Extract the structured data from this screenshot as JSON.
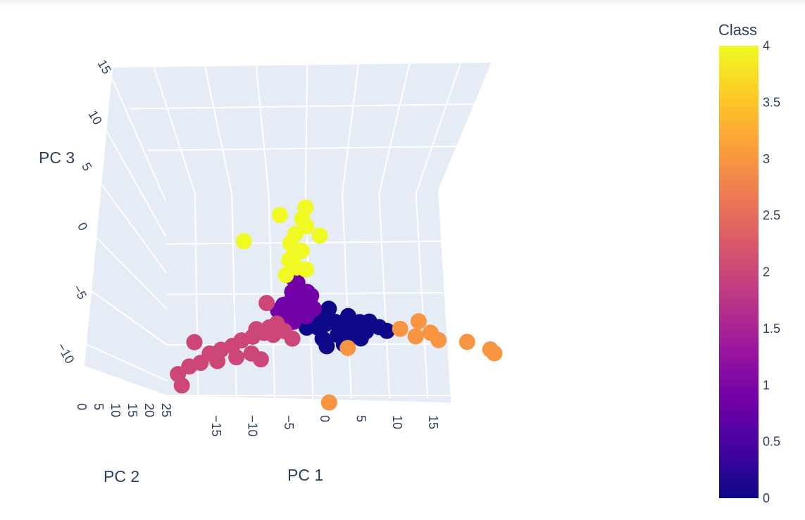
{
  "chart_data": {
    "type": "scatter3d",
    "axes": {
      "x": {
        "label": "PC 1",
        "ticks": [
          "−15",
          "−10",
          "−5",
          "0",
          "5",
          "10",
          "15"
        ]
      },
      "y": {
        "label": "PC 2",
        "ticks": [
          "0",
          "5",
          "10",
          "15",
          "20",
          "25"
        ]
      },
      "z": {
        "label": "PC 3",
        "ticks": [
          "−10",
          "−5",
          "0",
          "5",
          "10",
          "15"
        ]
      }
    },
    "colorbar": {
      "title": "Class",
      "ticks": [
        "0",
        "0.5",
        "1",
        "1.5",
        "2",
        "2.5",
        "3",
        "3.5",
        "4"
      ],
      "range": [
        0,
        4
      ],
      "colorscale": [
        "#0d0887",
        "#46039f",
        "#7201a8",
        "#9c179e",
        "#bd3786",
        "#d8576b",
        "#ed7953",
        "#fb9f3a",
        "#fdca26",
        "#f0f921"
      ]
    },
    "classes": {
      "0": {
        "color": "#0d0887"
      },
      "1": {
        "color": "#7201a8"
      },
      "2": {
        "color": "#cc4778"
      },
      "3": {
        "color": "#f89540"
      },
      "4": {
        "color": "#f0f921"
      }
    },
    "points": [
      {
        "x": 0.5,
        "y": 3,
        "z": -2,
        "class": 0
      },
      {
        "x": 2,
        "y": 3,
        "z": -2.5,
        "class": 0
      },
      {
        "x": 4,
        "y": 2,
        "z": -2.3,
        "class": 0
      },
      {
        "x": 6,
        "y": 2,
        "z": -1.8,
        "class": 0
      },
      {
        "x": 7,
        "y": 1.5,
        "z": -1.5,
        "class": 0
      },
      {
        "x": 3,
        "y": 2,
        "z": -3.5,
        "class": 0
      },
      {
        "x": 1,
        "y": 2,
        "z": -4,
        "class": 0
      },
      {
        "x": 5,
        "y": 1.5,
        "z": -3,
        "class": 0
      },
      {
        "x": 8,
        "y": 1,
        "z": -2,
        "class": 0
      },
      {
        "x": 2,
        "y": 2.5,
        "z": -1,
        "class": 0
      },
      {
        "x": -0.5,
        "y": 3,
        "z": -3,
        "class": 0
      },
      {
        "x": 3.5,
        "y": 1.5,
        "z": -4.5,
        "class": 0
      },
      {
        "x": 1.5,
        "y": 2,
        "z": -5,
        "class": 0
      },
      {
        "x": 4.5,
        "y": 2,
        "z": -1,
        "class": 0
      },
      {
        "x": 6.5,
        "y": 1.5,
        "z": -2.8,
        "class": 0
      },
      {
        "x": 2.5,
        "y": 3,
        "z": -0.5,
        "class": 0
      },
      {
        "x": 0,
        "y": 3.5,
        "z": -1,
        "class": 0
      },
      {
        "x": 5.5,
        "y": 1,
        "z": -3.5,
        "class": 0
      },
      {
        "x": 3,
        "y": 2.5,
        "z": -2,
        "class": 0
      },
      {
        "x": 1,
        "y": 3,
        "z": -3,
        "class": 0
      },
      {
        "x": 9,
        "y": 1,
        "z": -2.5,
        "class": 0
      },
      {
        "x": 4,
        "y": 1.5,
        "z": -4,
        "class": 0
      },
      {
        "x": -1,
        "y": 3,
        "z": 0,
        "class": 1
      },
      {
        "x": -2,
        "y": 3,
        "z": -0.5,
        "class": 1
      },
      {
        "x": -0.5,
        "y": 3.5,
        "z": 1,
        "class": 1
      },
      {
        "x": 0,
        "y": 3,
        "z": 0.5,
        "class": 1
      },
      {
        "x": -3,
        "y": 2.5,
        "z": -1,
        "class": 1
      },
      {
        "x": -1.5,
        "y": 3.5,
        "z": 2,
        "class": 1
      },
      {
        "x": 0.5,
        "y": 3,
        "z": -0.5,
        "class": 1
      },
      {
        "x": -2.5,
        "y": 3,
        "z": 0.5,
        "class": 1
      },
      {
        "x": -1,
        "y": 4,
        "z": 2.5,
        "class": 1
      },
      {
        "x": -4,
        "y": 2.5,
        "z": -1.5,
        "class": 1
      },
      {
        "x": -2,
        "y": 3.5,
        "z": 1.5,
        "class": 1
      },
      {
        "x": 0,
        "y": 3.5,
        "z": 1.5,
        "class": 1
      },
      {
        "x": -3.5,
        "y": 3,
        "z": 0,
        "class": 1
      },
      {
        "x": -0.5,
        "y": 3,
        "z": -1.5,
        "class": 1
      },
      {
        "x": -1.5,
        "y": 4,
        "z": 3,
        "class": 1
      },
      {
        "x": -2.5,
        "y": 2.5,
        "z": -2,
        "class": 1
      },
      {
        "x": 0.5,
        "y": 3.5,
        "z": 1,
        "class": 1
      },
      {
        "x": -4.5,
        "y": 2.5,
        "z": -0.5,
        "class": 1
      },
      {
        "x": -5,
        "y": 2,
        "z": -2,
        "class": 2
      },
      {
        "x": -7,
        "y": 1.5,
        "z": -3,
        "class": 2
      },
      {
        "x": -6,
        "y": 2,
        "z": -2.5,
        "class": 2
      },
      {
        "x": -8.5,
        "y": 1.5,
        "z": -3.5,
        "class": 2
      },
      {
        "x": -10,
        "y": 1.5,
        "z": -4,
        "class": 2
      },
      {
        "x": -11.5,
        "y": 1,
        "z": -4.5,
        "class": 2
      },
      {
        "x": -13,
        "y": 1,
        "z": -5,
        "class": 2
      },
      {
        "x": -14.5,
        "y": 1,
        "z": -5.5,
        "class": 2
      },
      {
        "x": -16,
        "y": 0.5,
        "z": -6.5,
        "class": 2
      },
      {
        "x": -17.5,
        "y": 0.5,
        "z": -7,
        "class": 2
      },
      {
        "x": -19,
        "y": 0.5,
        "z": -8,
        "class": 2
      },
      {
        "x": -18.5,
        "y": 0.5,
        "z": -9.5,
        "class": 2
      },
      {
        "x": -16.5,
        "y": 1,
        "z": -4,
        "class": 2
      },
      {
        "x": -9,
        "y": 1,
        "z": -5.5,
        "class": 2
      },
      {
        "x": -7.5,
        "y": 1.5,
        "z": -6.5,
        "class": 2
      },
      {
        "x": -3,
        "y": 2,
        "z": -4,
        "class": 2
      },
      {
        "x": -4,
        "y": 2,
        "z": -3,
        "class": 2
      },
      {
        "x": -6,
        "y": 2.5,
        "z": 0.5,
        "class": 2
      },
      {
        "x": -11,
        "y": 1,
        "z": -6,
        "class": 2
      },
      {
        "x": -13.5,
        "y": 1,
        "z": -6.5,
        "class": 2
      },
      {
        "x": -5.5,
        "y": 2,
        "z": -3.5,
        "class": 2
      },
      {
        "x": -8,
        "y": 1.5,
        "z": -2.5,
        "class": 2
      },
      {
        "x": 10.5,
        "y": 0.5,
        "z": -2,
        "class": 3
      },
      {
        "x": 12.5,
        "y": 0.5,
        "z": -3,
        "class": 3
      },
      {
        "x": 14.5,
        "y": 0.5,
        "z": -2.5,
        "class": 3
      },
      {
        "x": 15.5,
        "y": 0.5,
        "z": -3.5,
        "class": 3
      },
      {
        "x": 13,
        "y": 0.5,
        "z": -1,
        "class": 3
      },
      {
        "x": 19,
        "y": 0,
        "z": -3.5,
        "class": 3
      },
      {
        "x": 22,
        "y": 0,
        "z": -4.5,
        "class": 3
      },
      {
        "x": 22.5,
        "y": 0,
        "z": -5,
        "class": 3
      },
      {
        "x": 4,
        "y": 1.5,
        "z": -5,
        "class": 3
      },
      {
        "x": 1,
        "y": 1,
        "z": -12,
        "class": 3
      },
      {
        "x": -1,
        "y": 4,
        "z": 4.5,
        "class": 4
      },
      {
        "x": -2,
        "y": 4,
        "z": 5.5,
        "class": 4
      },
      {
        "x": 0,
        "y": 4.5,
        "z": 6.5,
        "class": 4
      },
      {
        "x": -1.5,
        "y": 4.5,
        "z": 7.5,
        "class": 4
      },
      {
        "x": -0.5,
        "y": 5,
        "z": 8.5,
        "class": 4
      },
      {
        "x": 1,
        "y": 5,
        "z": 9.5,
        "class": 4
      },
      {
        "x": 0.5,
        "y": 5,
        "z": 10.5,
        "class": 4
      },
      {
        "x": -2.5,
        "y": 5,
        "z": 11,
        "class": 4
      },
      {
        "x": 1,
        "y": 5,
        "z": 12,
        "class": 4
      },
      {
        "x": -8,
        "y": 4,
        "z": 8,
        "class": 4
      },
      {
        "x": 2.5,
        "y": 4.5,
        "z": 8.5,
        "class": 4
      },
      {
        "x": -2.5,
        "y": 4,
        "z": 3.5,
        "class": 4
      },
      {
        "x": 0.5,
        "y": 4.5,
        "z": 4,
        "class": 4
      },
      {
        "x": -1,
        "y": 4.5,
        "z": 6,
        "class": 4
      }
    ]
  }
}
